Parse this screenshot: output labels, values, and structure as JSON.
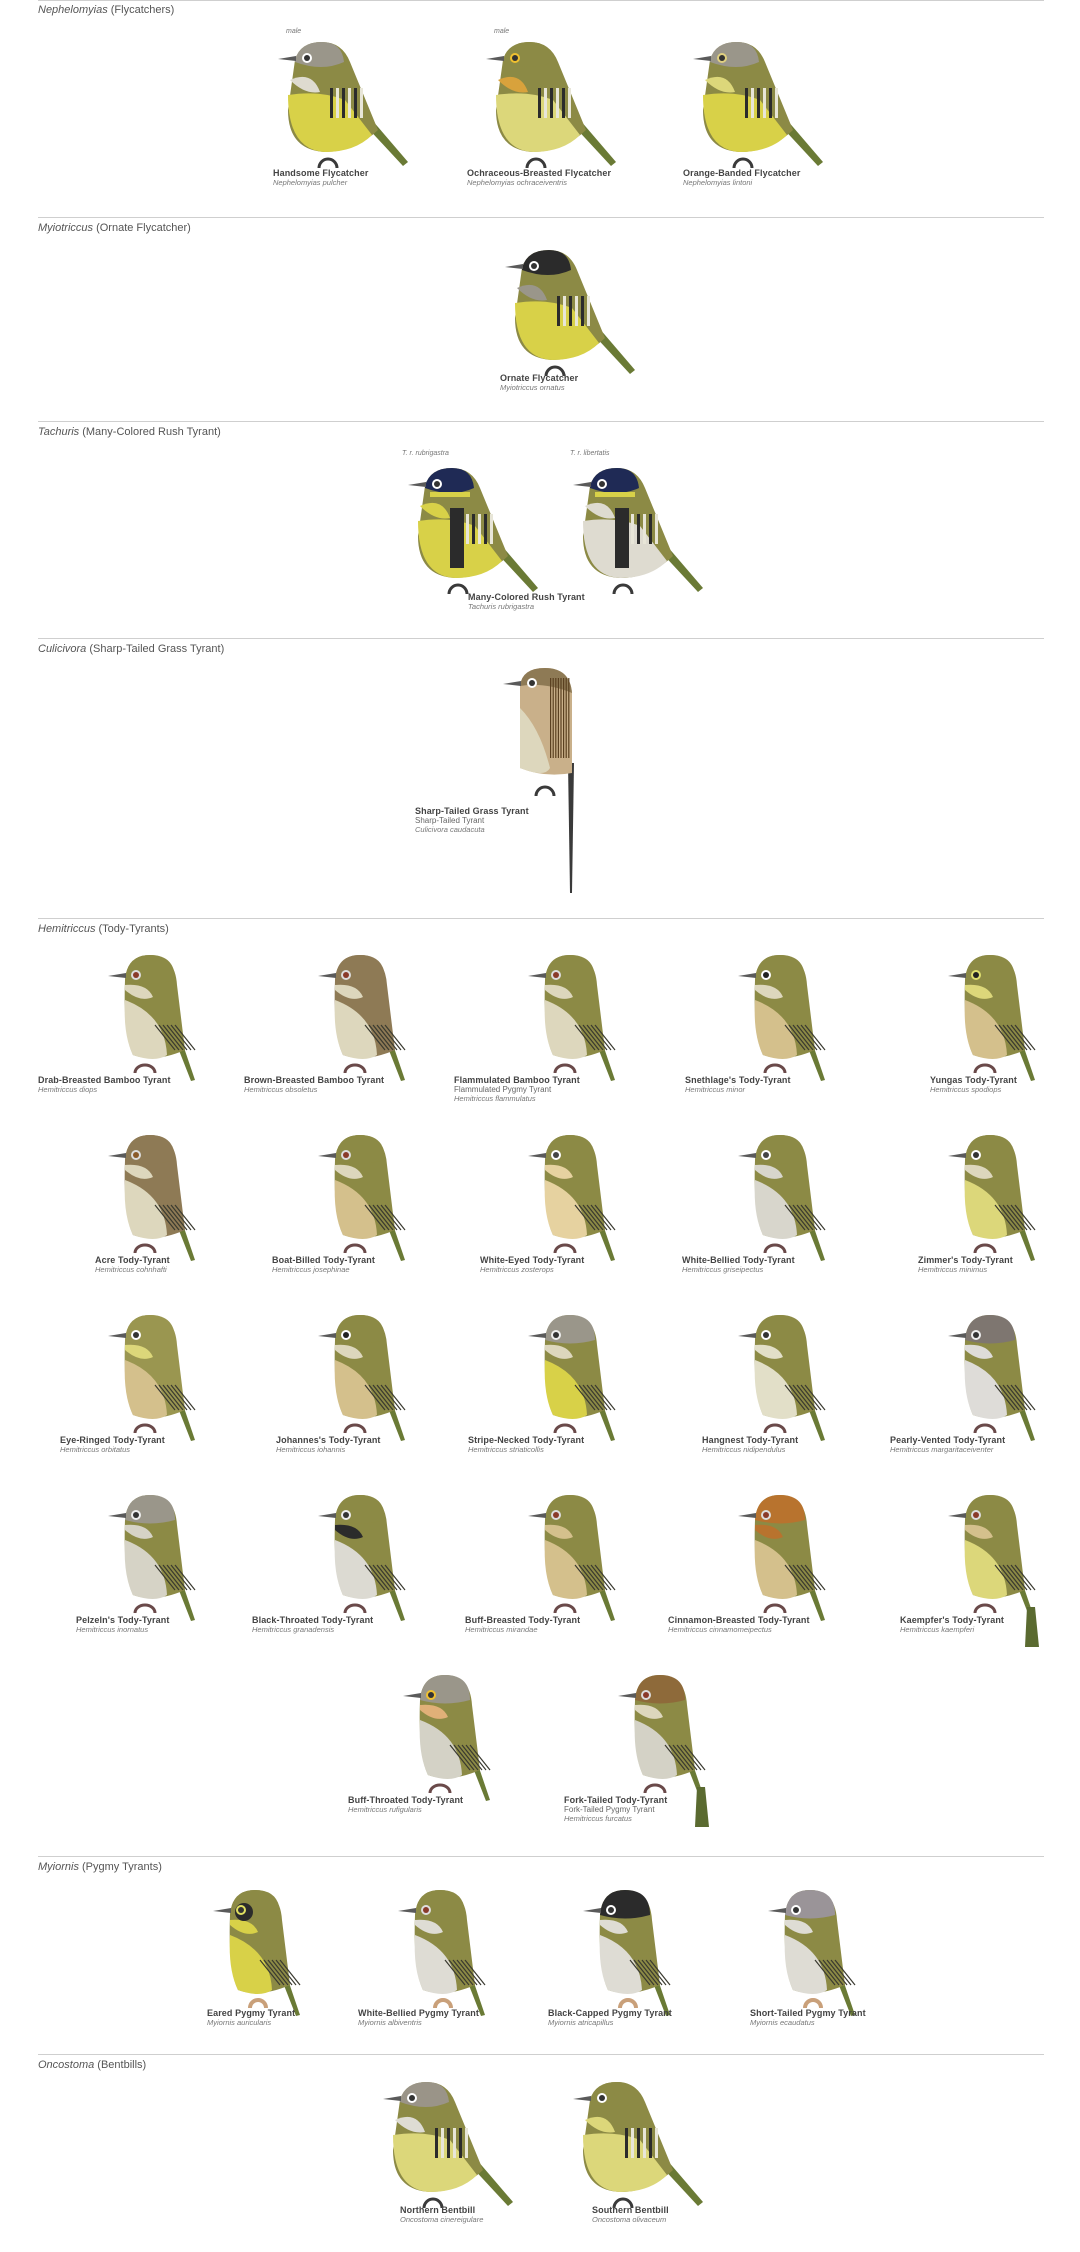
{
  "sections": [
    {
      "genus": "Nephelomyias",
      "rest": " (Flycatchers)"
    },
    {
      "genus": "Myiotriccus",
      "rest": " (Ornate Flycatcher)"
    },
    {
      "genus": "Tachuris",
      "rest": " (Many-Colored Rush Tyrant)"
    },
    {
      "genus": "Culicivora",
      "rest": " (Sharp-Tailed Grass Tyrant)"
    },
    {
      "genus": "Hemitriccus",
      "rest": " (Tody-Tyrants)"
    },
    {
      "genus": "Myiornis",
      "rest": " (Pygmy Tyrants)"
    },
    {
      "genus": "Oncostoma",
      "rest": " (Bentbills)"
    }
  ],
  "tags": {
    "male1": "male",
    "male2": "male",
    "rubrigastra": "T. r. rubrigastra",
    "libertatis": "T. r. libertatis"
  },
  "birds": [
    {
      "name": "Handsome Flycatcher",
      "sci": "Nephelomyias pulcher"
    },
    {
      "name": "Ochraceous-Breasted Flycatcher",
      "sci": "Nephelomyias ochraceiventris"
    },
    {
      "name": "Orange-Banded Flycatcher",
      "sci": "Nephelomyias lintoni"
    },
    {
      "name": "Ornate Flycatcher",
      "sci": "Myiotriccus ornatus"
    },
    {
      "name": "Many-Colored Rush Tyrant",
      "sci": "Tachuris rubrigastra"
    },
    {
      "name": "Sharp-Tailed Grass Tyrant",
      "alt": "Sharp-Tailed Tyrant",
      "sci": "Culicivora caudacuta"
    },
    {
      "name": "Drab-Breasted Bamboo Tyrant",
      "sci": "Hemitriccus diops"
    },
    {
      "name": "Brown-Breasted Bamboo Tyrant",
      "sci": "Hemitriccus obsoletus"
    },
    {
      "name": "Flammulated Bamboo Tyrant",
      "alt": "Flammulated Pygmy Tyrant",
      "sci": "Hemitriccus flammulatus"
    },
    {
      "name": "Snethlage's Tody-Tyrant",
      "sci": "Hemitriccus minor"
    },
    {
      "name": "Yungas Tody-Tyrant",
      "sci": "Hemitriccus spodiops"
    },
    {
      "name": "Acre Tody-Tyrant",
      "sci": "Hemitriccus cohnhafti"
    },
    {
      "name": "Boat-Billed Tody-Tyrant",
      "sci": "Hemitriccus josephinae"
    },
    {
      "name": "White-Eyed Tody-Tyrant",
      "sci": "Hemitriccus zosterops"
    },
    {
      "name": "White-Bellied Tody-Tyrant",
      "sci": "Hemitriccus griseipectus"
    },
    {
      "name": "Zimmer's Tody-Tyrant",
      "sci": "Hemitriccus minimus"
    },
    {
      "name": "Eye-Ringed Tody-Tyrant",
      "sci": "Hemitriccus orbitatus"
    },
    {
      "name": "Johannes's Tody-Tyrant",
      "sci": "Hemitriccus iohannis"
    },
    {
      "name": "Stripe-Necked Tody-Tyrant",
      "sci": "Hemitriccus striaticollis"
    },
    {
      "name": "Hangnest Tody-Tyrant",
      "sci": "Hemitriccus nidipendulus"
    },
    {
      "name": "Pearly-Vented Tody-Tyrant",
      "sci": "Hemitriccus margaritaceiventer"
    },
    {
      "name": "Pelzeln's Tody-Tyrant",
      "sci": "Hemitriccus inornatus"
    },
    {
      "name": "Black-Throated Tody-Tyrant",
      "sci": "Hemitriccus granadensis"
    },
    {
      "name": "Buff-Breasted Tody-Tyrant",
      "sci": "Hemitriccus mirandae"
    },
    {
      "name": "Cinnamon-Breasted Tody-Tyrant",
      "sci": "Hemitriccus cinnamomeipectus"
    },
    {
      "name": "Kaempfer's Tody-Tyrant",
      "sci": "Hemitriccus kaempferi"
    },
    {
      "name": "Buff-Throated Tody-Tyrant",
      "sci": "Hemitriccus rufigularis"
    },
    {
      "name": "Fork-Tailed Tody-Tyrant",
      "alt": "Fork-Tailed Pygmy Tyrant",
      "sci": "Hemitriccus furcatus"
    },
    {
      "name": "Eared Pygmy Tyrant",
      "sci": "Myiornis auricularis"
    },
    {
      "name": "White-Bellied Pygmy Tyrant",
      "sci": "Myiornis albiventris"
    },
    {
      "name": "Black-Capped Pygmy Tyrant",
      "sci": "Myiornis atricapillus"
    },
    {
      "name": "Short-Tailed Pygmy Tyrant",
      "sci": "Myiornis ecaudatus"
    },
    {
      "name": "Northern Bentbill",
      "sci": "Oncostoma cinereigulare"
    },
    {
      "name": "Southern Bentbill",
      "sci": "Oncostoma olivaceum"
    }
  ]
}
